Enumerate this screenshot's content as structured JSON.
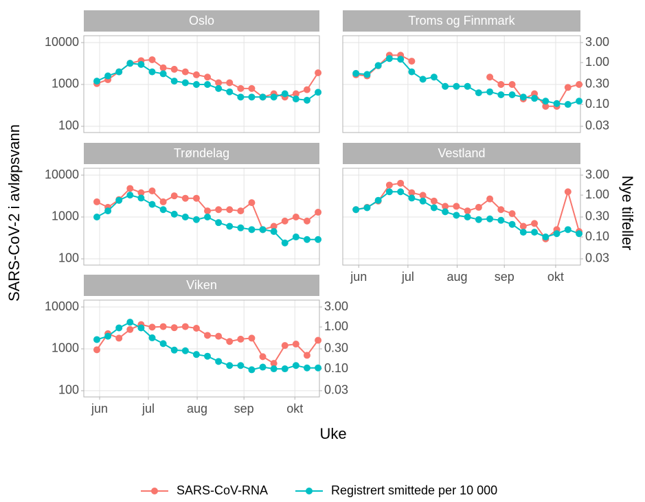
{
  "chart_data": [
    {
      "type": "line",
      "title": "Oslo",
      "x_label": "Uke",
      "y_label": "SARS-CoV-2 i avløpsvann",
      "y2_label": "Nye tilfeller",
      "log": true,
      "grid": true,
      "legend": "bottom",
      "x": [
        22,
        23,
        24,
        25,
        26,
        27,
        28,
        29,
        30,
        31,
        32,
        33,
        34,
        35,
        36,
        37,
        38,
        39,
        40,
        41,
        42
      ],
      "xlim": [
        20.82,
        42.12
      ],
      "xticks": [
        {
          "value": 22.25,
          "label": "jun"
        },
        {
          "value": 26.66,
          "label": "jul"
        },
        {
          "value": 31.07,
          "label": "aug"
        },
        {
          "value": 35.3,
          "label": "sep"
        },
        {
          "value": 39.9,
          "label": "okt"
        }
      ],
      "ylim": [
        71,
        14600
      ],
      "yticks": [
        100,
        1000,
        10000
      ],
      "y2lim": [
        0.0213,
        4.38
      ],
      "y2ticks": [
        0.03,
        {
          "value": 0.1,
          "label": "0.10"
        },
        {
          "value": 0.3,
          "label": "0.30"
        },
        {
          "value": 1,
          "label": "1.00"
        },
        {
          "value": 3,
          "label": "3.00"
        }
      ],
      "series": [
        {
          "name": "SARS-CoV-RNA",
          "color": "#F8766D",
          "values": [
            1050,
            1300,
            2000,
            3200,
            3700,
            3900,
            2500,
            2300,
            2000,
            1700,
            1500,
            1100,
            1100,
            800,
            800,
            500,
            600,
            500,
            600,
            750,
            1900
          ]
        },
        {
          "name": "Registrert smittede per 10 000",
          "color": "#00BFC4",
          "axis": "y2",
          "values": [
            0.36,
            0.48,
            0.6,
            0.96,
            0.9,
            0.6,
            0.54,
            0.36,
            0.33,
            0.3,
            0.3,
            0.24,
            0.2,
            0.15,
            0.15,
            0.15,
            0.15,
            0.18,
            0.135,
            0.126,
            0.195
          ]
        }
      ]
    },
    {
      "type": "line",
      "title": "Troms og Finnmark",
      "log": true,
      "grid": true,
      "x": [
        22,
        23,
        24,
        25,
        26,
        27,
        28,
        29,
        30,
        31,
        32,
        33,
        34,
        35,
        36,
        37,
        38,
        39,
        40,
        41,
        42
      ],
      "xlim": [
        20.82,
        42.12
      ],
      "xticks": [
        {
          "value": 22.25,
          "label": "jun"
        },
        {
          "value": 26.66,
          "label": "jul"
        },
        {
          "value": 31.07,
          "label": "aug"
        },
        {
          "value": 35.3,
          "label": "sep"
        },
        {
          "value": 39.9,
          "label": "okt"
        }
      ],
      "ylim": [
        71,
        14600
      ],
      "yticks": [
        100,
        1000,
        10000
      ],
      "y2lim": [
        0.0213,
        4.38
      ],
      "y2ticks": [
        0.03,
        {
          "value": 0.1,
          "label": "0.10"
        },
        {
          "value": 0.3,
          "label": "0.30"
        },
        {
          "value": 1,
          "label": "1.00"
        },
        {
          "value": 3,
          "label": "3.00"
        }
      ],
      "series": [
        {
          "name": "SARS-CoV-RNA",
          "color": "#F8766D",
          "values": [
            1700,
            1600,
            2800,
            5000,
            5000,
            3600,
            null,
            null,
            null,
            null,
            null,
            null,
            1500,
            1000,
            1000,
            450,
            600,
            300,
            300,
            850,
            1000
          ]
        },
        {
          "name": "Registrert smittede per 10 000",
          "color": "#00BFC4",
          "axis": "y2",
          "values": [
            0.55,
            0.52,
            0.85,
            1.25,
            1.2,
            0.6,
            0.4,
            0.45,
            0.27,
            0.27,
            0.27,
            0.19,
            0.2,
            0.17,
            0.17,
            0.15,
            0.14,
            0.12,
            0.105,
            0.1,
            0.12
          ]
        }
      ]
    },
    {
      "type": "line",
      "title": "Trøndelag",
      "log": true,
      "grid": true,
      "x": [
        22,
        23,
        24,
        25,
        26,
        27,
        28,
        29,
        30,
        31,
        32,
        33,
        34,
        35,
        36,
        37,
        38,
        39,
        40,
        41,
        42
      ],
      "xlim": [
        20.82,
        42.12
      ],
      "xticks": [
        {
          "value": 22.25,
          "label": "jun"
        },
        {
          "value": 26.66,
          "label": "jul"
        },
        {
          "value": 31.07,
          "label": "aug"
        },
        {
          "value": 35.3,
          "label": "sep"
        },
        {
          "value": 39.9,
          "label": "okt"
        }
      ],
      "ylim": [
        71,
        14600
      ],
      "yticks": [
        100,
        1000,
        10000
      ],
      "y2lim": [
        0.0213,
        4.38
      ],
      "y2ticks": [
        0.03,
        {
          "value": 0.1,
          "label": "0.10"
        },
        {
          "value": 0.3,
          "label": "0.30"
        },
        {
          "value": 1,
          "label": "1.00"
        },
        {
          "value": 3,
          "label": "3.00"
        }
      ],
      "series": [
        {
          "name": "SARS-CoV-RNA",
          "color": "#F8766D",
          "values": [
            2300,
            1700,
            2600,
            4800,
            3800,
            4200,
            2300,
            3200,
            2800,
            2800,
            1400,
            1500,
            1500,
            1400,
            2200,
            500,
            600,
            800,
            1000,
            800,
            1300
          ]
        },
        {
          "name": "Registrert smittede per 10 000",
          "color": "#00BFC4",
          "axis": "y2",
          "values": [
            0.3,
            0.42,
            0.75,
            1.0,
            0.85,
            0.6,
            0.45,
            0.35,
            0.3,
            0.26,
            0.3,
            0.22,
            0.18,
            0.165,
            0.15,
            0.15,
            0.135,
            0.072,
            0.1,
            0.087,
            0.087
          ]
        }
      ]
    },
    {
      "type": "line",
      "title": "Vestland",
      "log": true,
      "grid": true,
      "x": [
        22,
        23,
        24,
        25,
        26,
        27,
        28,
        29,
        30,
        31,
        32,
        33,
        34,
        35,
        36,
        37,
        38,
        39,
        40,
        41,
        42
      ],
      "xlim": [
        20.82,
        42.12
      ],
      "xticks": [
        {
          "value": 22.25,
          "label": "jun"
        },
        {
          "value": 26.66,
          "label": "jul"
        },
        {
          "value": 31.07,
          "label": "aug"
        },
        {
          "value": 35.3,
          "label": "sep"
        },
        {
          "value": 39.9,
          "label": "okt"
        }
      ],
      "ylim": [
        71,
        14600
      ],
      "yticks": [
        100,
        1000,
        10000
      ],
      "y2lim": [
        0.0213,
        4.38
      ],
      "y2ticks": [
        0.03,
        {
          "value": 0.1,
          "label": "0.10"
        },
        {
          "value": 0.3,
          "label": "0.30"
        },
        {
          "value": 1,
          "label": "1.00"
        },
        {
          "value": 3,
          "label": "3.00"
        }
      ],
      "series": [
        {
          "name": "SARS-CoV-RNA",
          "color": "#F8766D",
          "values": [
            1500,
            1700,
            2400,
            5800,
            6400,
            3800,
            3300,
            2400,
            1800,
            1800,
            1400,
            1700,
            2700,
            1500,
            1200,
            600,
            700,
            300,
            500,
            4000,
            450
          ]
        },
        {
          "name": "Registrert smittede per 10 000",
          "color": "#00BFC4",
          "axis": "y2",
          "values": [
            0.45,
            0.5,
            0.75,
            1.2,
            1.2,
            0.85,
            0.72,
            0.5,
            0.4,
            0.33,
            0.3,
            0.26,
            0.27,
            0.25,
            0.2,
            0.13,
            0.13,
            0.1,
            0.12,
            0.15,
            0.12
          ]
        }
      ]
    },
    {
      "type": "line",
      "title": "Viken",
      "log": true,
      "grid": true,
      "x": [
        22,
        23,
        24,
        25,
        26,
        27,
        28,
        29,
        30,
        31,
        32,
        33,
        34,
        35,
        36,
        37,
        38,
        39,
        40,
        41,
        42
      ],
      "xlim": [
        20.82,
        42.12
      ],
      "xticks": [
        {
          "value": 22.25,
          "label": "jun"
        },
        {
          "value": 26.66,
          "label": "jul"
        },
        {
          "value": 31.07,
          "label": "aug"
        },
        {
          "value": 35.3,
          "label": "sep"
        },
        {
          "value": 39.9,
          "label": "okt"
        }
      ],
      "ylim": [
        71,
        14600
      ],
      "yticks": [
        100,
        1000,
        10000
      ],
      "y2lim": [
        0.0213,
        4.38
      ],
      "y2ticks": [
        0.03,
        {
          "value": 0.1,
          "label": "0.10"
        },
        {
          "value": 0.3,
          "label": "0.30"
        },
        {
          "value": 1,
          "label": "1.00"
        },
        {
          "value": 3,
          "label": "3.00"
        }
      ],
      "series": [
        {
          "name": "SARS-CoV-RNA",
          "color": "#F8766D",
          "values": [
            950,
            2300,
            1800,
            2900,
            3800,
            3300,
            3400,
            3200,
            3400,
            3100,
            2100,
            2000,
            1500,
            1700,
            1800,
            650,
            450,
            1200,
            1300,
            700,
            1600
          ]
        },
        {
          "name": "Registrert smittede per 10 000",
          "color": "#00BFC4",
          "axis": "y2",
          "values": [
            0.5,
            0.6,
            0.95,
            1.3,
            0.95,
            0.55,
            0.4,
            0.28,
            0.27,
            0.22,
            0.2,
            0.15,
            0.12,
            0.12,
            0.095,
            0.11,
            0.1,
            0.1,
            0.12,
            0.105,
            0.105
          ]
        }
      ]
    }
  ]
}
